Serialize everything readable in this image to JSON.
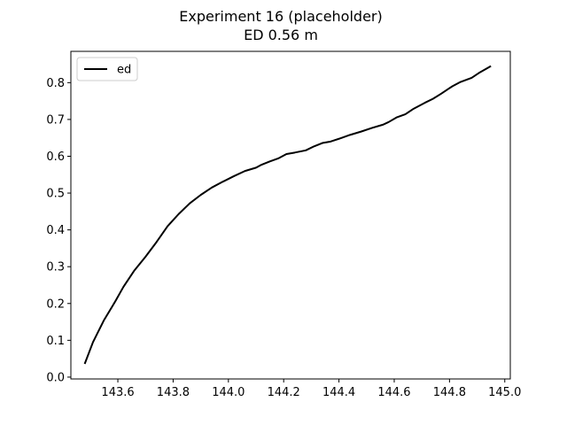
{
  "chart_data": {
    "type": "line",
    "title": "Experiment 16 (placeholder)",
    "subtitle": "ED 0.56 m",
    "xlabel": "",
    "ylabel": "",
    "xlim": [
      143.43,
      145.02
    ],
    "ylim": [
      -0.005,
      0.885
    ],
    "xticks": [
      143.6,
      143.8,
      144.0,
      144.2,
      144.4,
      144.6,
      144.8,
      145.0
    ],
    "xtick_labels": [
      "143.6",
      "143.8",
      "144.0",
      "144.2",
      "144.4",
      "144.6",
      "144.8",
      "145.0"
    ],
    "yticks": [
      0.0,
      0.1,
      0.2,
      0.3,
      0.4,
      0.5,
      0.6,
      0.7,
      0.8
    ],
    "ytick_labels": [
      "0.0",
      "0.1",
      "0.2",
      "0.3",
      "0.4",
      "0.5",
      "0.6",
      "0.7",
      "0.8"
    ],
    "grid": false,
    "legend": "upper left",
    "series": [
      {
        "name": "ed",
        "color": "#000000",
        "x": [
          143.48,
          143.51,
          143.55,
          143.59,
          143.62,
          143.66,
          143.7,
          143.74,
          143.78,
          143.82,
          143.86,
          143.9,
          143.94,
          143.98,
          144.02,
          144.06,
          144.1,
          144.12,
          144.15,
          144.18,
          144.21,
          144.24,
          144.28,
          144.31,
          144.34,
          144.37,
          144.41,
          144.44,
          144.48,
          144.52,
          144.56,
          144.58,
          144.61,
          144.64,
          144.67,
          144.71,
          144.74,
          144.77,
          144.81,
          144.84,
          144.88,
          144.91,
          144.95
        ],
        "y": [
          0.036,
          0.095,
          0.155,
          0.205,
          0.245,
          0.29,
          0.327,
          0.367,
          0.41,
          0.443,
          0.472,
          0.495,
          0.515,
          0.531,
          0.546,
          0.56,
          0.569,
          0.577,
          0.586,
          0.594,
          0.606,
          0.61,
          0.616,
          0.627,
          0.636,
          0.64,
          0.65,
          0.658,
          0.667,
          0.677,
          0.686,
          0.693,
          0.706,
          0.714,
          0.729,
          0.745,
          0.756,
          0.77,
          0.79,
          0.802,
          0.813,
          0.828,
          0.845
        ]
      }
    ]
  }
}
